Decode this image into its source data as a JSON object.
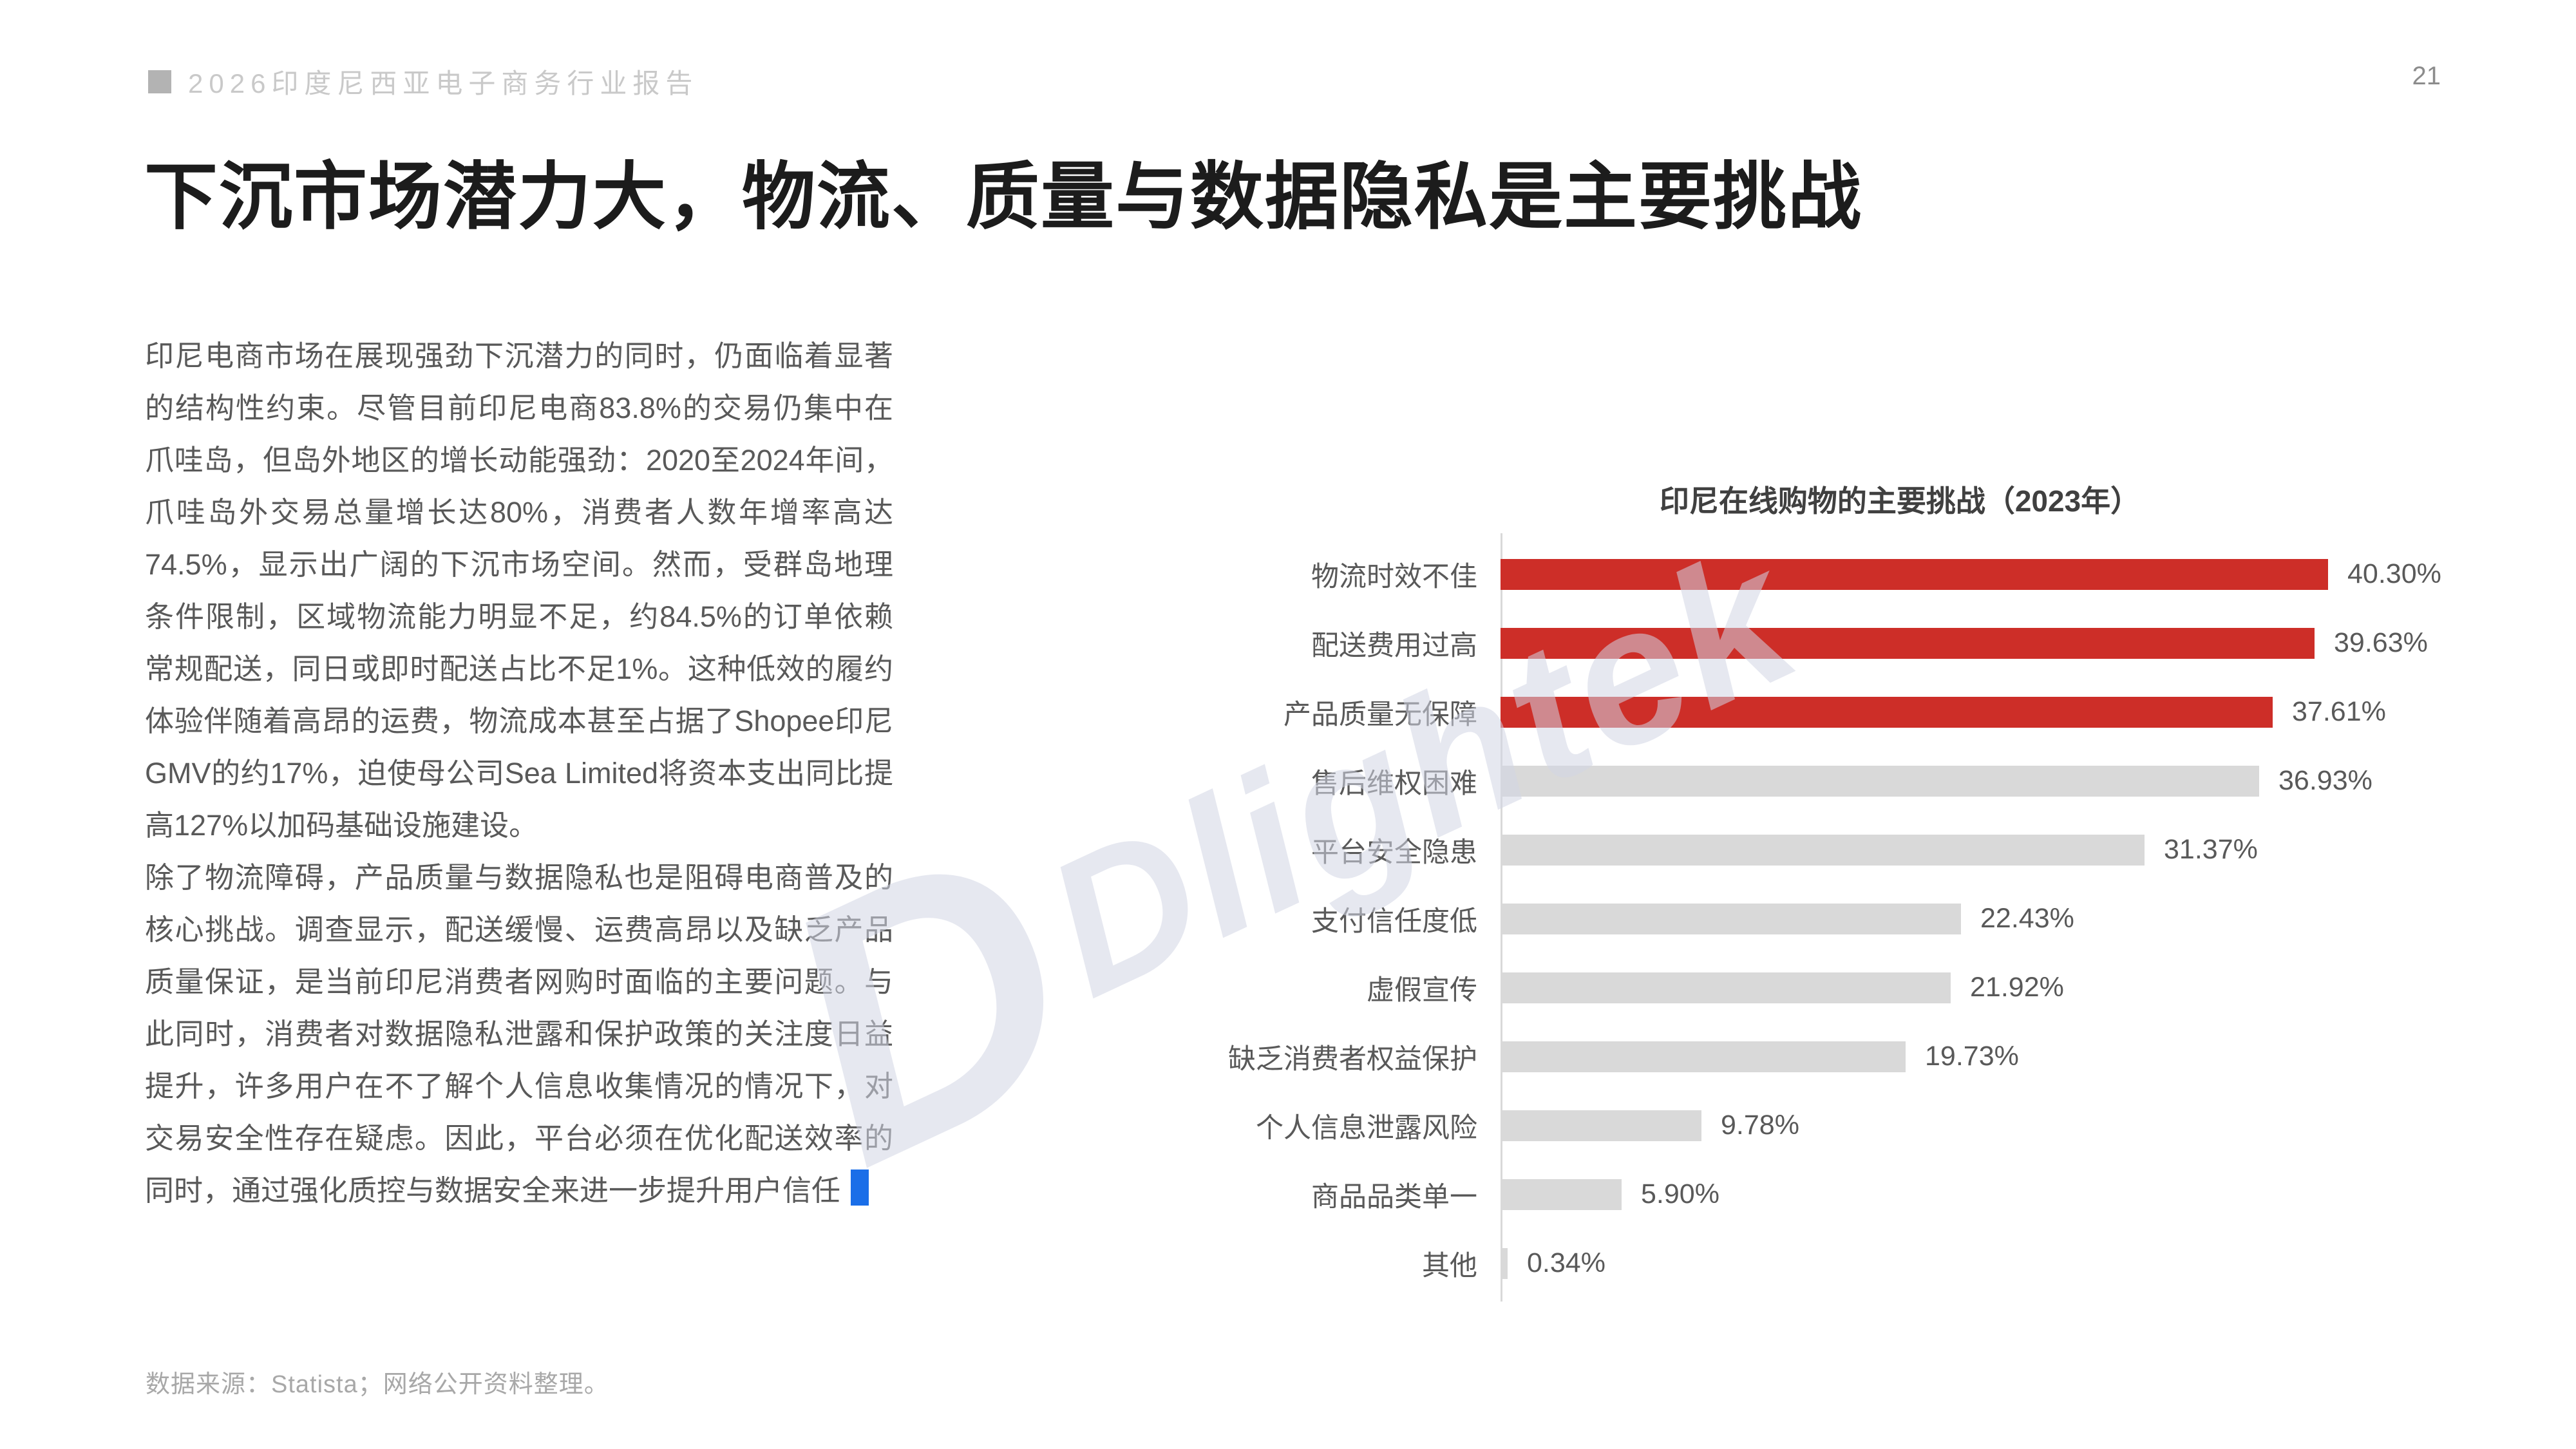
{
  "header": {
    "report_title": "2026印度尼西亚电子商务行业报告",
    "page_number": "21",
    "marker_color": "#b3b3b3"
  },
  "title": "下沉市场潜力大，物流、质量与数据隐私是主要挑战",
  "body": {
    "paragraphs": [
      "印尼电商市场在展现强劲下沉潜力的同时，仍面临着显著的结构性约束。尽管目前印尼电商83.8%的交易仍集中在爪哇岛，但岛外地区的增长动能强劲：2020至2024年间，爪哇岛外交易总量增长达80%，消费者人数年增率高达74.5%，显示出广阔的下沉市场空间。然而，受群岛地理条件限制，区域物流能力明显不足，约84.5%的订单依赖常规配送，同日或即时配送占比不足1%。这种低效的履约体验伴随着高昂的运费，物流成本甚至占据了Shopee印尼GMV的约17%，迫使母公司Sea Limited将资本支出同比提高127%以加码基础设施建设。",
      "除了物流障碍，产品质量与数据隐私也是阻碍电商普及的核心挑战。调查显示，配送缓慢、运费高昂以及缺乏产品质量保证，是当前印尼消费者网购时面临的主要问题。与此同时，消费者对数据隐私泄露和保护政策的关注度日益提升，许多用户在不了解个人信息收集情况的情况下，对交易安全性存在疑虑。因此，平台必须在优化配送效率的同时，通过强化质控与数据安全来进一步提升用户信任"
    ],
    "end_marker_color": "#1a6ee8"
  },
  "watermark": {
    "logo": "D",
    "text": "Dlightek"
  },
  "chart_data": {
    "type": "bar",
    "orientation": "horizontal",
    "title": "印尼在线购物的主要挑战（2023年）",
    "categories": [
      "物流时效不佳",
      "配送费用过高",
      "产品质量无保障",
      "售后维权困难",
      "平台安全隐患",
      "支付信任度低",
      "虚假宣传",
      "缺乏消费者权益保护",
      "个人信息泄露风险",
      "商品品类单一",
      "其他"
    ],
    "values": [
      40.3,
      39.63,
      37.61,
      36.93,
      31.37,
      22.43,
      21.92,
      19.73,
      9.78,
      5.9,
      0.34
    ],
    "value_labels": [
      "40.30%",
      "39.63%",
      "37.61%",
      "36.93%",
      "31.37%",
      "22.43%",
      "21.92%",
      "19.73%",
      "9.78%",
      "5.90%",
      "0.34%"
    ],
    "highlighted": [
      true,
      true,
      true,
      false,
      false,
      false,
      false,
      false,
      false,
      false,
      false
    ],
    "colors": {
      "highlight": "#cd2e28",
      "normal": "#d9d9d9"
    },
    "xlabel": "",
    "ylabel": "",
    "xlim": [
      0,
      40.3
    ],
    "grid": false,
    "legend": false
  },
  "footer": {
    "source": "数据来源：Statista；网络公开资料整理。"
  }
}
